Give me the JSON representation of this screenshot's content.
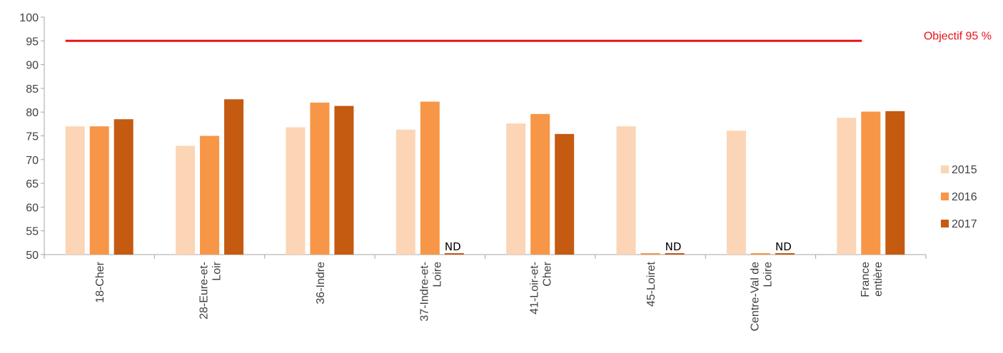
{
  "chart_data": {
    "type": "bar",
    "title": "",
    "xlabel": "",
    "ylabel": "",
    "ylim": [
      50,
      100
    ],
    "yticks": [
      50,
      55,
      60,
      65,
      70,
      75,
      80,
      85,
      90,
      95,
      100
    ],
    "categories": [
      [
        "18-Cher"
      ],
      [
        "28-Eure-et-",
        "Loir"
      ],
      [
        "36-Indre"
      ],
      [
        "37-Indre-et-",
        "Loire"
      ],
      [
        "41-Loir-et-",
        "Cher"
      ],
      [
        "45-Loiret"
      ],
      [
        "Centre-Val de",
        "Loire"
      ],
      [
        "France",
        "entière"
      ]
    ],
    "series": [
      {
        "name": "2015",
        "color": "#FBD5B5",
        "values": [
          77.0,
          72.9,
          76.8,
          76.3,
          77.6,
          77.0,
          76.1,
          78.8
        ]
      },
      {
        "name": "2016",
        "color": "#F79646",
        "values": [
          77.0,
          75.0,
          82.0,
          82.2,
          79.6,
          null,
          null,
          80.1
        ]
      },
      {
        "name": "2017",
        "color": "#C55A11",
        "values": [
          78.5,
          82.7,
          81.3,
          null,
          75.4,
          null,
          null,
          80.2
        ]
      }
    ],
    "missing_label": "ND",
    "target": {
      "value": 95,
      "label": "Objectif 95 %",
      "color": "#E8141B"
    },
    "legend_position": "right",
    "grid": false
  }
}
